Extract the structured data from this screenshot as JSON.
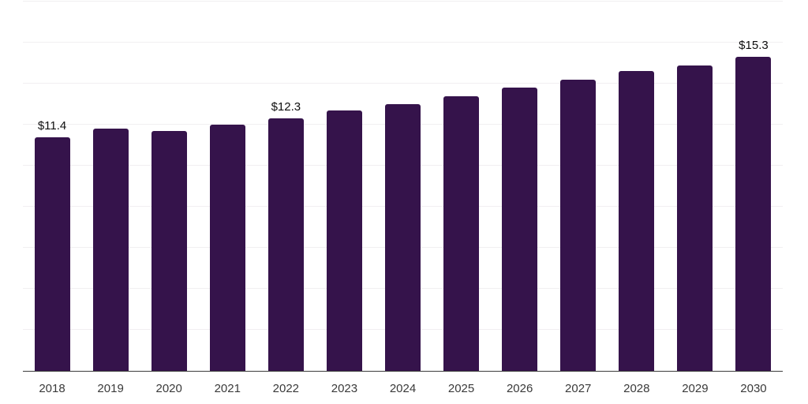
{
  "chart_data": {
    "type": "bar",
    "categories": [
      "2018",
      "2019",
      "2020",
      "2021",
      "2022",
      "2023",
      "2024",
      "2025",
      "2026",
      "2027",
      "2028",
      "2029",
      "2030"
    ],
    "values": [
      11.4,
      11.8,
      11.7,
      12.0,
      12.3,
      12.7,
      13.0,
      13.4,
      13.8,
      14.2,
      14.6,
      14.9,
      15.3
    ],
    "annotations": [
      {
        "index": 0,
        "text": "$11.4"
      },
      {
        "index": 4,
        "text": "$12.3"
      },
      {
        "index": 12,
        "text": "$15.3"
      }
    ],
    "xlabel": "",
    "ylabel": "",
    "ylim": [
      0,
      18
    ],
    "grid": true,
    "grid_step": 2,
    "legend": false,
    "colors": {
      "bar": "#35134b",
      "axis_line": "#3c3c3c",
      "gridline": "#f1eff1",
      "value_label": "#0f0f0f",
      "tick_label": "#3a3a3a",
      "background": "#ffffff"
    }
  }
}
